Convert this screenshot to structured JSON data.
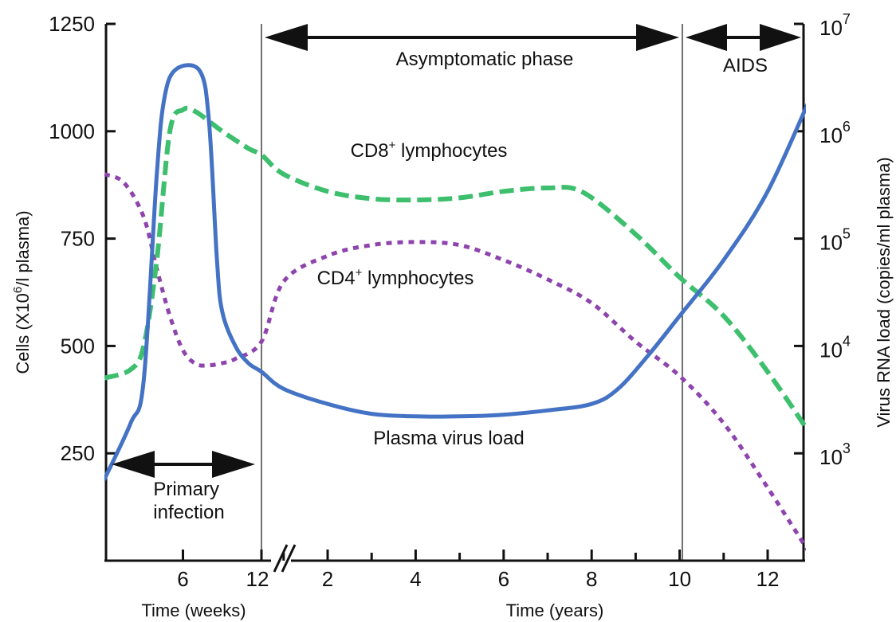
{
  "chart_data": {
    "type": "line",
    "left_axis": {
      "title_pre": "Cells (X10",
      "title_sup": "6",
      "title_post": "/l plasma)",
      "ticks": [
        250,
        500,
        750,
        1000,
        1250
      ],
      "ylim": [
        0,
        1250
      ]
    },
    "right_axis": {
      "title": "Virus RNA load (copies/ml plasma)",
      "scale": "log",
      "ticks": [
        {
          "base": "10",
          "exp": "3",
          "value": 1000
        },
        {
          "base": "10",
          "exp": "4",
          "value": 10000
        },
        {
          "base": "10",
          "exp": "5",
          "value": 100000
        },
        {
          "base": "10",
          "exp": "6",
          "value": 1000000
        },
        {
          "base": "10",
          "exp": "7",
          "value": 10000000
        }
      ]
    },
    "x_axis_weeks": {
      "title": "Time (weeks)",
      "ticks": [
        6,
        12
      ],
      "xlim": [
        0,
        12
      ]
    },
    "x_axis_years": {
      "title": "Time (years)",
      "ticks": [
        2,
        4,
        6,
        8,
        10,
        12
      ],
      "xlim": [
        0.25,
        13
      ]
    },
    "series": [
      {
        "name": "Plasma virus load",
        "color": "#4472c4",
        "style": "solid",
        "axis": "right",
        "points": [
          [
            "w",
            0,
            190
          ],
          [
            "w",
            2,
            320
          ],
          [
            "w",
            3,
            420
          ],
          [
            "w",
            4,
            900
          ],
          [
            "w",
            4.6,
            1080
          ],
          [
            "w",
            5.5,
            1145
          ],
          [
            "w",
            7.3,
            1140
          ],
          [
            "w",
            8,
            1020
          ],
          [
            "w",
            8.6,
            700
          ],
          [
            "w",
            9,
            580
          ],
          [
            "w",
            10,
            500
          ],
          [
            "w",
            11,
            460
          ],
          [
            "w",
            12,
            440
          ],
          [
            "y",
            1,
            400
          ],
          [
            "y",
            2,
            365
          ],
          [
            "y",
            3,
            342
          ],
          [
            "y",
            4,
            336
          ],
          [
            "y",
            5,
            336
          ],
          [
            "y",
            6,
            340
          ],
          [
            "y",
            7,
            350
          ],
          [
            "y",
            8,
            365
          ],
          [
            "y",
            8.6,
            400
          ],
          [
            "y",
            9.3,
            480
          ],
          [
            "y",
            10,
            570
          ],
          [
            "y",
            11,
            700
          ],
          [
            "y",
            12,
            860
          ],
          [
            "y",
            13,
            1085
          ]
        ]
      },
      {
        "name": "CD8+ lymphocytes",
        "label_base": "CD8",
        "label_sup": "+",
        "label_post": " lymphocytes",
        "color": "#3dbf6e",
        "style": "dashed",
        "axis": "left",
        "points": [
          [
            "w",
            0,
            425
          ],
          [
            "w",
            2,
            445
          ],
          [
            "w",
            3,
            500
          ],
          [
            "w",
            4,
            700
          ],
          [
            "w",
            5,
            1000
          ],
          [
            "w",
            6,
            1050
          ],
          [
            "w",
            7,
            1045
          ],
          [
            "w",
            9,
            1000
          ],
          [
            "w",
            11,
            960
          ],
          [
            "w",
            12,
            945
          ],
          [
            "y",
            1,
            900
          ],
          [
            "y",
            2,
            860
          ],
          [
            "y",
            3,
            843
          ],
          [
            "y",
            4,
            840
          ],
          [
            "y",
            5,
            845
          ],
          [
            "y",
            6,
            860
          ],
          [
            "y",
            7,
            868
          ],
          [
            "y",
            7.8,
            858
          ],
          [
            "y",
            9,
            760
          ],
          [
            "y",
            10,
            660
          ],
          [
            "y",
            11,
            570
          ],
          [
            "y",
            12,
            440
          ],
          [
            "y",
            13,
            290
          ]
        ]
      },
      {
        "name": "CD4+ lymphocytes",
        "label_base": "CD4",
        "label_sup": "+",
        "label_post": " lymphocytes",
        "color": "#8e44ad",
        "style": "dotted",
        "axis": "left",
        "points": [
          [
            "w",
            0,
            900
          ],
          [
            "w",
            1.5,
            880
          ],
          [
            "w",
            3,
            800
          ],
          [
            "w",
            4,
            680
          ],
          [
            "w",
            5,
            570
          ],
          [
            "w",
            6,
            490
          ],
          [
            "w",
            7,
            458
          ],
          [
            "w",
            8,
            455
          ],
          [
            "w",
            9,
            460
          ],
          [
            "w",
            10,
            470
          ],
          [
            "w",
            12,
            510
          ],
          [
            "y",
            1,
            650
          ],
          [
            "y",
            2,
            710
          ],
          [
            "y",
            3,
            735
          ],
          [
            "y",
            4,
            742
          ],
          [
            "y",
            5,
            735
          ],
          [
            "y",
            6,
            700
          ],
          [
            "y",
            7,
            655
          ],
          [
            "y",
            8,
            600
          ],
          [
            "y",
            9,
            510
          ],
          [
            "y",
            10,
            430
          ],
          [
            "y",
            11,
            320
          ],
          [
            "y",
            12,
            170
          ],
          [
            "y",
            13,
            10
          ]
        ]
      }
    ],
    "annotations": {
      "asymptomatic": "Asymptomatic phase",
      "aids": "AIDS",
      "primary_line1": "Primary",
      "primary_line2": "infection"
    },
    "grid": false
  }
}
